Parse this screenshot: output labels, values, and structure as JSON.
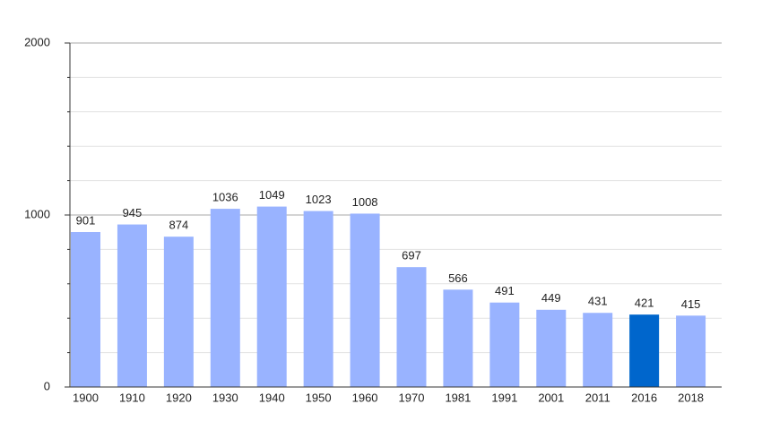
{
  "chart_data": {
    "type": "bar",
    "categories": [
      "1900",
      "1910",
      "1920",
      "1930",
      "1940",
      "1950",
      "1960",
      "1970",
      "1981",
      "1991",
      "2001",
      "2011",
      "2016",
      "2018"
    ],
    "values": [
      901,
      945,
      874,
      1036,
      1049,
      1023,
      1008,
      697,
      566,
      491,
      449,
      431,
      421,
      415
    ],
    "colors": [
      "#99b3ff",
      "#99b3ff",
      "#99b3ff",
      "#99b3ff",
      "#99b3ff",
      "#99b3ff",
      "#99b3ff",
      "#99b3ff",
      "#99b3ff",
      "#99b3ff",
      "#99b3ff",
      "#99b3ff",
      "#0066cc",
      "#99b3ff"
    ],
    "ylim": [
      0,
      2000
    ],
    "yticks": [
      0,
      1000,
      2000
    ],
    "minor_yticks": [
      200,
      400,
      600,
      800,
      1200,
      1400,
      1600,
      1800
    ],
    "grid": true
  }
}
